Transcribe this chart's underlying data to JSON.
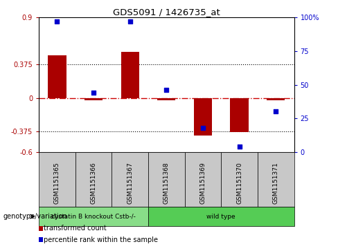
{
  "title": "GDS5091 / 1426735_at",
  "samples": [
    "GSM1151365",
    "GSM1151366",
    "GSM1151367",
    "GSM1151368",
    "GSM1151369",
    "GSM1151370",
    "GSM1151371"
  ],
  "bar_values": [
    0.48,
    -0.02,
    0.52,
    -0.02,
    -0.42,
    -0.38,
    -0.02
  ],
  "dot_values": [
    97,
    44,
    97,
    46,
    18,
    4,
    30
  ],
  "ylim_left": [
    -0.6,
    0.9
  ],
  "ylim_right": [
    0,
    100
  ],
  "yticks_left": [
    -0.6,
    -0.375,
    0,
    0.375,
    0.9
  ],
  "yticks_right": [
    0,
    25,
    50,
    75,
    100
  ],
  "ytick_labels_left": [
    "-0.6",
    "-0.375",
    "0",
    "0.375",
    "0.9"
  ],
  "ytick_labels_right": [
    "0",
    "25",
    "50",
    "75",
    "100%"
  ],
  "hlines": [
    0.375,
    -0.375
  ],
  "bar_color": "#aa0000",
  "dot_color": "#0000cc",
  "zero_line_color": "#cc0000",
  "groups": [
    {
      "label": "cystatin B knockout Cstb-/-",
      "start": 0,
      "end": 3,
      "color": "#88dd88"
    },
    {
      "label": "wild type",
      "start": 3,
      "end": 7,
      "color": "#55cc55"
    }
  ],
  "group_row_label": "genotype/variation",
  "legend_items": [
    {
      "label": "transformed count",
      "color": "#aa0000"
    },
    {
      "label": "percentile rank within the sample",
      "color": "#0000cc"
    }
  ],
  "bar_width": 0.5,
  "xlabels_bg": "#c8c8c8",
  "plot_bg": "white",
  "fig_bg": "white"
}
